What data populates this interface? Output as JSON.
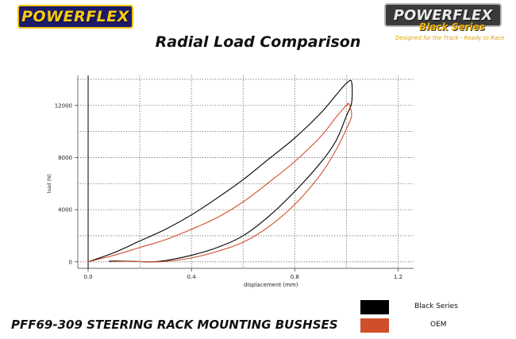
{
  "logos": {
    "left_text": "POWERFLEX",
    "right_text": "POWERFLEX",
    "right_series": "Black Series",
    "right_tagline": "Designed for the Track - Ready to Race"
  },
  "title": "Radial Load Comparison",
  "footer_title": "PFF69-309 STEERING RACK MOUNTING BUSHSES",
  "legend": [
    {
      "label": "Black Series",
      "color": "#000000"
    },
    {
      "label": "OEM",
      "color": "#cf4f2a"
    }
  ],
  "chart_data": {
    "type": "line",
    "xlabel": "displacement (mm)",
    "ylabel": "load (N)",
    "xlim": [
      -0.04,
      1.26
    ],
    "ylim": [
      -500,
      14300
    ],
    "xticks": [
      0.0,
      0.4,
      0.8,
      1.2
    ],
    "xtick_labels": [
      "0.0",
      "0.4",
      "0.8",
      "1.2"
    ],
    "yticks": [
      0,
      4000,
      8000,
      12000
    ],
    "ytick_labels": [
      "0",
      "4000",
      "8000",
      "12000"
    ],
    "grid": true,
    "series": [
      {
        "name": "Black Series",
        "color": "#000000",
        "x": [
          0.0,
          0.1,
          0.2,
          0.3,
          0.4,
          0.5,
          0.6,
          0.7,
          0.8,
          0.9,
          0.96,
          1.0,
          1.02,
          1.02,
          1.0,
          0.96,
          0.9,
          0.8,
          0.7,
          0.6,
          0.5,
          0.4,
          0.3,
          0.24,
          0.2,
          0.15,
          0.1,
          0.08
        ],
        "y": [
          0,
          700,
          1600,
          2500,
          3600,
          4900,
          6300,
          7900,
          9500,
          11400,
          12800,
          13700,
          13800,
          12200,
          11200,
          9300,
          7600,
          5400,
          3500,
          2000,
          1100,
          500,
          100,
          0,
          20,
          50,
          60,
          40
        ]
      },
      {
        "name": "OEM",
        "color": "#cf4f2a",
        "x": [
          0.0,
          0.1,
          0.2,
          0.3,
          0.4,
          0.5,
          0.6,
          0.7,
          0.8,
          0.9,
          0.96,
          1.0,
          1.01,
          1.02,
          1.0,
          0.96,
          0.9,
          0.8,
          0.7,
          0.6,
          0.5,
          0.4,
          0.3,
          0.25,
          0.2,
          0.15,
          0.1
        ],
        "y": [
          0,
          500,
          1100,
          1700,
          2500,
          3400,
          4600,
          6100,
          7700,
          9600,
          11100,
          12000,
          12100,
          11200,
          10200,
          8600,
          6700,
          4400,
          2700,
          1500,
          800,
          300,
          30,
          0,
          20,
          40,
          20
        ]
      }
    ]
  }
}
